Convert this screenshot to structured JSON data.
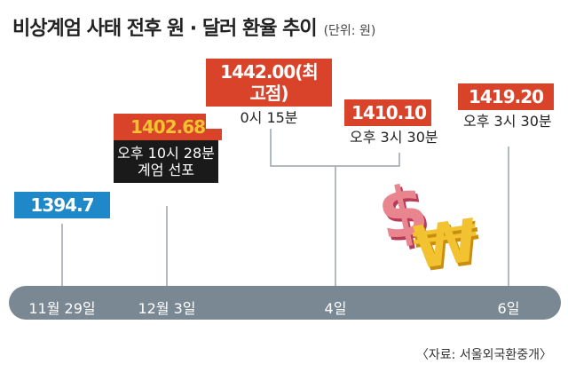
{
  "title": "비상계엄 사태 전후 원 · 달러 환율 추이",
  "unit": "(단위: 원)",
  "source": "〈자료: 서울외국환중개〉",
  "colors": {
    "red": "#d9432a",
    "blue": "#1e88c8",
    "black": "#1a1a1a",
    "gold": "#f2c230",
    "axis": "#7a8894"
  },
  "chart_data": {
    "type": "timeline",
    "dates": [
      "11월 29일",
      "12월 3일",
      "4일",
      "6일"
    ],
    "points": [
      {
        "value": "1394.7",
        "note": "",
        "date": "11월 29일"
      },
      {
        "value": "1402.68",
        "note": "오후 10시 28분\n계엄 선포",
        "date": "12월 3일"
      },
      {
        "value": "1442.00(최고점)",
        "note": "0시 15분",
        "date": "4일"
      },
      {
        "value": "1410.10",
        "note": "오후 3시 30분",
        "date": "4일"
      },
      {
        "value": "1419.20",
        "note": "오후 3시 30분",
        "date": "6일"
      }
    ]
  }
}
